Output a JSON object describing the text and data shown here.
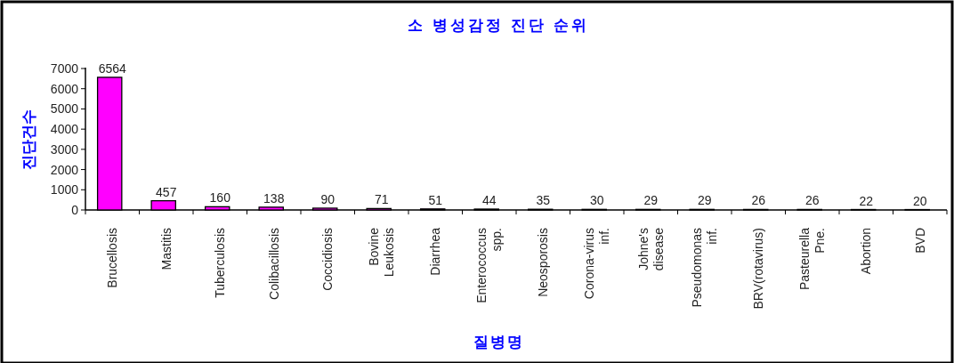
{
  "chart_data": {
    "type": "bar",
    "title": "소 병성감정 진단 순위",
    "xlabel": "질병명",
    "ylabel": "진단건수",
    "categories": [
      "Brucellosis",
      "Mastitis",
      "Tuberculosis",
      "Colibacillosis",
      "Coccidiosis",
      "Bovine\nLeukosis",
      "Diarrhea",
      "Enterococcus\nspp.",
      "Neosporosis",
      "Corona-virus\ninf.",
      "Johne's\ndisease",
      "Pseudomonas\ninf.",
      "BRV(rotavirus)",
      "Pasteurella\nPne.",
      "Abortion",
      "BVD"
    ],
    "values": [
      6564,
      457,
      160,
      138,
      90,
      71,
      51,
      44,
      35,
      30,
      29,
      29,
      26,
      26,
      22,
      20
    ],
    "color": "#ff00ff",
    "data_labels": true,
    "ylim": [
      0,
      7000
    ],
    "yticks": [
      0,
      1000,
      2000,
      3000,
      4000,
      5000,
      6000,
      7000
    ],
    "grid": false
  }
}
